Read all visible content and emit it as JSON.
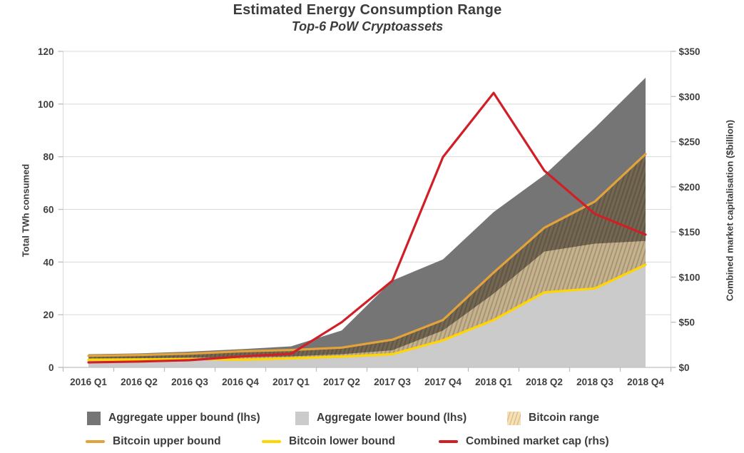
{
  "title": "Estimated Energy Consumption Range",
  "subtitle": "Top-6 PoW Cryptoassets",
  "chart_data": {
    "type": "area",
    "categories": [
      "2016 Q1",
      "2016 Q2",
      "2016 Q3",
      "2016 Q4",
      "2017 Q1",
      "2017 Q2",
      "2017 Q3",
      "2017 Q4",
      "2018 Q1",
      "2018 Q2",
      "2018 Q3",
      "2018 Q4"
    ],
    "series": [
      {
        "id": "agg_upper",
        "name": "Aggregate upper bound (lhs)",
        "kind": "area",
        "axis": "left",
        "color": "#757575",
        "values": [
          5,
          5.3,
          6,
          6.9,
          8,
          14,
          33,
          41,
          59,
          73,
          91,
          110
        ]
      },
      {
        "id": "agg_lower",
        "name": "Aggregate lower bound (lhs)",
        "kind": "area",
        "axis": "left",
        "color": "#cbcbcb",
        "values": [
          3.4,
          3.5,
          3.7,
          3.8,
          4.2,
          5,
          6.5,
          14,
          28,
          44,
          47,
          48
        ]
      },
      {
        "id": "btc_range",
        "name": "Bitcoin range",
        "kind": "band",
        "axis": "left",
        "upper": "btc_upper",
        "lower": "btc_lower",
        "fill_base": "#f3e3ae",
        "fill_stripe": "#dcb49c"
      },
      {
        "id": "btc_upper",
        "name": "Bitcoin upper bound",
        "kind": "line",
        "axis": "left",
        "color": "#e2a33c",
        "values": [
          4.4,
          4.7,
          5.2,
          6.1,
          6.6,
          7.5,
          10.5,
          18,
          36,
          53,
          63,
          81
        ]
      },
      {
        "id": "btc_lower",
        "name": "Bitcoin lower bound",
        "kind": "line",
        "axis": "left",
        "color": "#ffd502",
        "values": [
          2.9,
          3,
          3.2,
          2.9,
          3.4,
          4.1,
          5,
          10.3,
          18,
          28.5,
          30,
          39
        ]
      },
      {
        "id": "mkt_cap",
        "name": "Combined market cap (rhs)",
        "kind": "line",
        "axis": "right",
        "color": "#d01f27",
        "values": [
          5.5,
          6.5,
          8,
          12,
          15,
          50,
          96,
          233,
          304,
          218,
          170,
          147
        ]
      }
    ],
    "left_axis": {
      "label": "Total TWh consumed",
      "range": [
        0,
        120
      ],
      "ticks": [
        {
          "value": 0,
          "label": "0"
        },
        {
          "value": 20,
          "label": "20"
        },
        {
          "value": 40,
          "label": "40"
        },
        {
          "value": 60,
          "label": "60"
        },
        {
          "value": 80,
          "label": "80"
        },
        {
          "value": 100,
          "label": "100"
        },
        {
          "value": 120,
          "label": "120"
        }
      ]
    },
    "right_axis": {
      "label": "Combined market capitalisation ($billion)",
      "range": [
        0,
        350
      ],
      "ticks": [
        {
          "value": 0,
          "label": "$0"
        },
        {
          "value": 50,
          "label": "$50"
        },
        {
          "value": 100,
          "label": "$100"
        },
        {
          "value": 150,
          "label": "$150"
        },
        {
          "value": 200,
          "label": "$200"
        },
        {
          "value": 250,
          "label": "$250"
        },
        {
          "value": 300,
          "label": "$300"
        },
        {
          "value": 350,
          "label": "$350"
        }
      ]
    },
    "grid": "horizontal",
    "legend_position": "bottom"
  },
  "legend": {
    "items": [
      {
        "label": "Aggregate upper bound (lhs)",
        "swatch": "square",
        "color": "#757575"
      },
      {
        "label": "Aggregate lower bound (lhs)",
        "swatch": "square",
        "color": "#cbcbcb"
      },
      {
        "label": "Bitcoin range",
        "swatch": "hatch",
        "color": "#f3e3ae"
      },
      {
        "label": "Bitcoin upper bound",
        "swatch": "line",
        "color": "#e2a33c"
      },
      {
        "label": "Bitcoin lower bound",
        "swatch": "line",
        "color": "#ffd502"
      },
      {
        "label": "Combined market cap (rhs)",
        "swatch": "line",
        "color": "#d01f27"
      }
    ]
  }
}
